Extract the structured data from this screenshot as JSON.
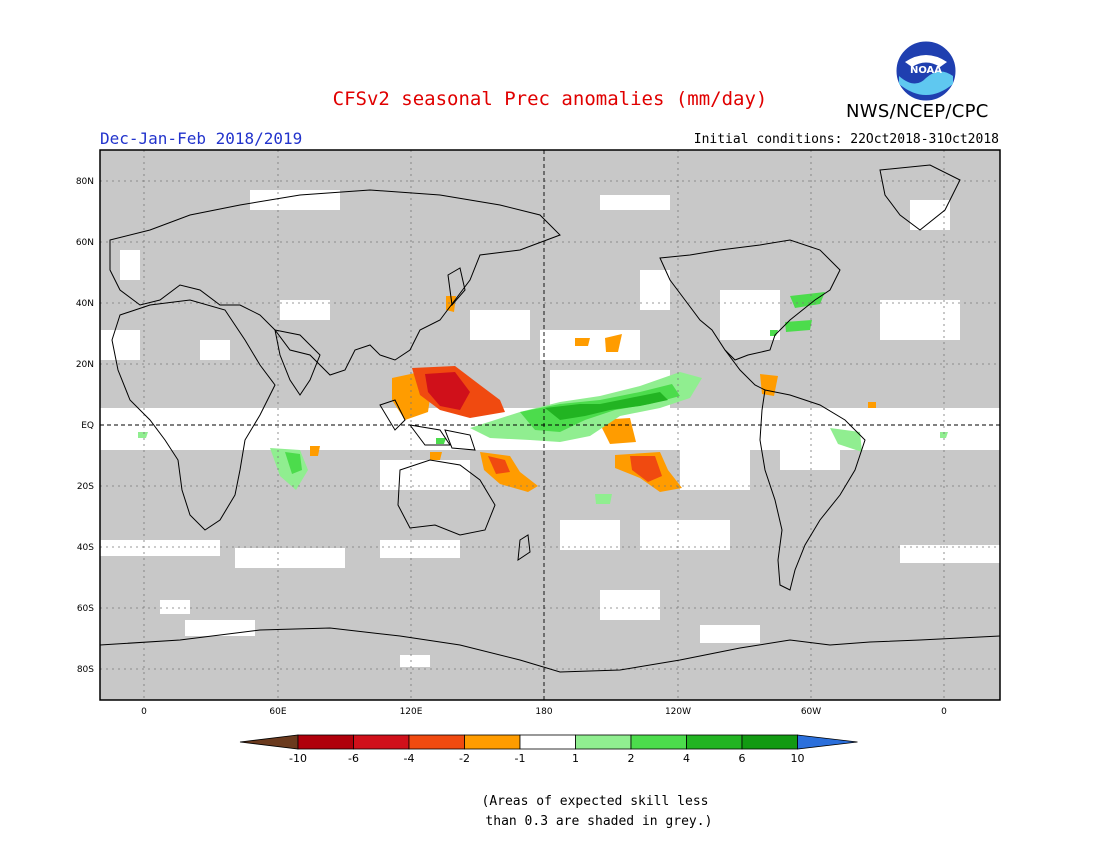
{
  "title": "CFSv2 seasonal Prec anomalies (mm/day)",
  "organization": "NWS/NCEP/CPC",
  "logo_text": "NOAA",
  "season": "Dec-Jan-Feb 2018/2019",
  "initial_conditions": "Initial conditions: 22Oct2018-31Oct2018",
  "lat_labels": [
    "80N",
    "60N",
    "40N",
    "20N",
    "EQ",
    "20S",
    "40S",
    "60S",
    "80S"
  ],
  "lon_labels": [
    "0",
    "60E",
    "120E",
    "180",
    "120W",
    "60W",
    "0"
  ],
  "colorbar": {
    "tick_labels": [
      "-10",
      "-6",
      "-4",
      "-2",
      "-1",
      "1",
      "2",
      "4",
      "6",
      "10"
    ],
    "colors": [
      "#6b3a1e",
      "#b0000b",
      "#d0101a",
      "#f04a10",
      "#ff9c00",
      "#ffffff",
      "#90ee90",
      "#4cdc4c",
      "#22b422",
      "#129a12",
      "#2b6fdb"
    ]
  },
  "skill_note_line1": "(Areas of expected skill less",
  "skill_note_line2": " than 0.3 are shaded in grey.)"
}
